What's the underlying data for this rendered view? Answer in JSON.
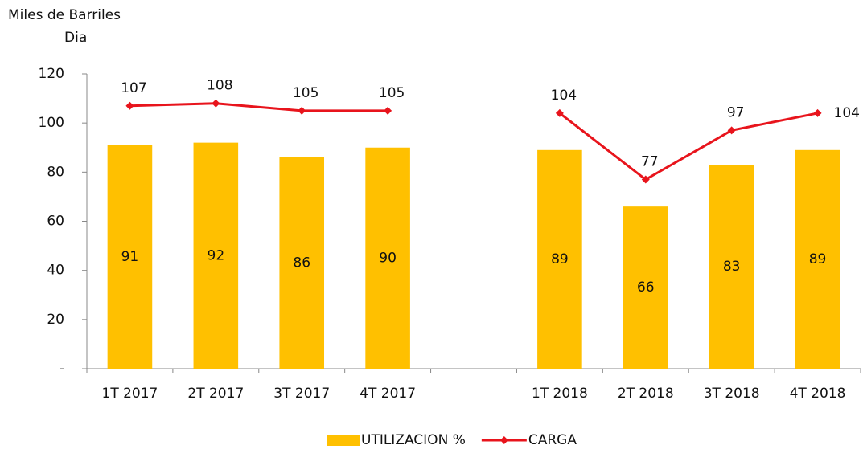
{
  "chart_data": {
    "type": "bar_line",
    "ylabel": [
      "Miles de Barriles",
      "Dia"
    ],
    "categories": [
      "1T 2017",
      "2T 2017",
      "3T 2017",
      "4T 2017",
      null,
      "1T 2018",
      "2T 2018",
      "3T 2018",
      "4T 2018"
    ],
    "series": [
      {
        "name": "UTILIZACION %",
        "type": "bar",
        "color": "#ffc000",
        "label_color": "#000000",
        "values": [
          91,
          92,
          86,
          90,
          null,
          89,
          66,
          83,
          89
        ]
      },
      {
        "name": "CARGA",
        "type": "line",
        "color": "#e8141c",
        "label_color": "#e8141c",
        "values": [
          107,
          108,
          105,
          105,
          null,
          104,
          77,
          97,
          104
        ]
      }
    ],
    "ylim": [
      0,
      120
    ],
    "yticks": [
      {
        "value": 0,
        "label": "-"
      },
      20,
      40,
      60,
      80,
      100,
      120
    ],
    "grid": false,
    "legend": "bottom"
  }
}
